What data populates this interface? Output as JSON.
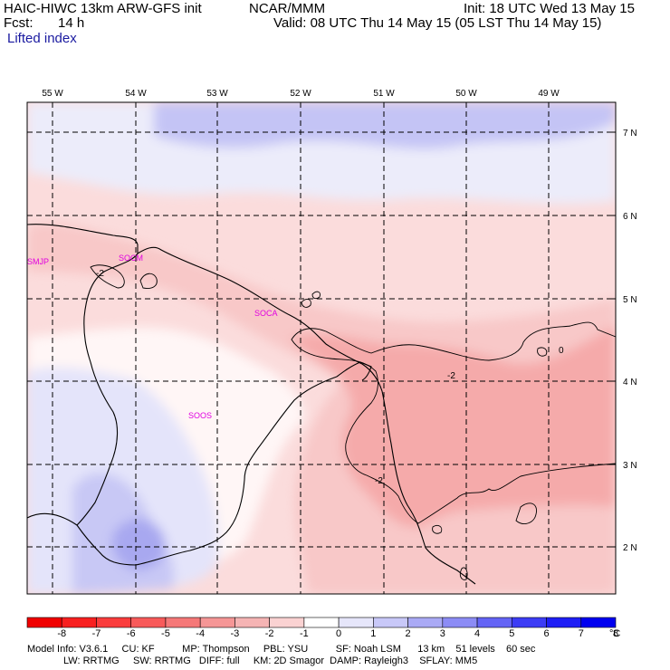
{
  "header": {
    "model": "HAIC-HIWC 13km ARW-GFS init",
    "org": "NCAR/MMM",
    "init": "Init: 18 UTC Wed 13 May 15",
    "fcst_label": "Fcst:",
    "fcst_value": "14 h",
    "valid": "Valid: 08 UTC Thu 14 May 15 (05 LST Thu 14 May 15)",
    "field": "Lifted index"
  },
  "map": {
    "lon_labels": [
      "55 W",
      "54 W",
      "53 W",
      "52 W",
      "51 W",
      "50 W",
      "49 W"
    ],
    "lat_labels": [
      "7 N",
      "6 N",
      "5 N",
      "4 N",
      "3 N",
      "2 N"
    ],
    "stations": [
      "SMJP",
      "SOCM",
      "SOCA",
      "SOOS"
    ],
    "contour_labels": [
      "-2",
      "-2",
      "-2",
      "0"
    ]
  },
  "colorbar": {
    "labels": [
      "-8",
      "-7",
      "-6",
      "-5",
      "-4",
      "-3",
      "-2",
      "-1",
      "0",
      "1",
      "2",
      "3",
      "4",
      "5",
      "6",
      "7",
      "8"
    ],
    "unit": "°C",
    "colors": [
      "#f00000",
      "#f82020",
      "#fa3c3c",
      "#f85a5a",
      "#f57878",
      "#f59696",
      "#f5b4b4",
      "#fad2d2",
      "#ffffff",
      "#e6e6fa",
      "#c8c8f8",
      "#aaaaf5",
      "#8c8cf5",
      "#6464f5",
      "#3c3cf5",
      "#1e1ef5",
      "#0000f0"
    ]
  },
  "footer": {
    "line1": "Model Info: V3.6.1     CU: KF          MP: Thompson     PBL: YSU          SF: Noah LSM      13 km    51 levels    60 sec",
    "line2": "LW: RRTMG     SW: RRTMG   DIFF: full     KM: 2D Smagor  DAMP: Rayleigh3    SFLAY: MM5"
  }
}
